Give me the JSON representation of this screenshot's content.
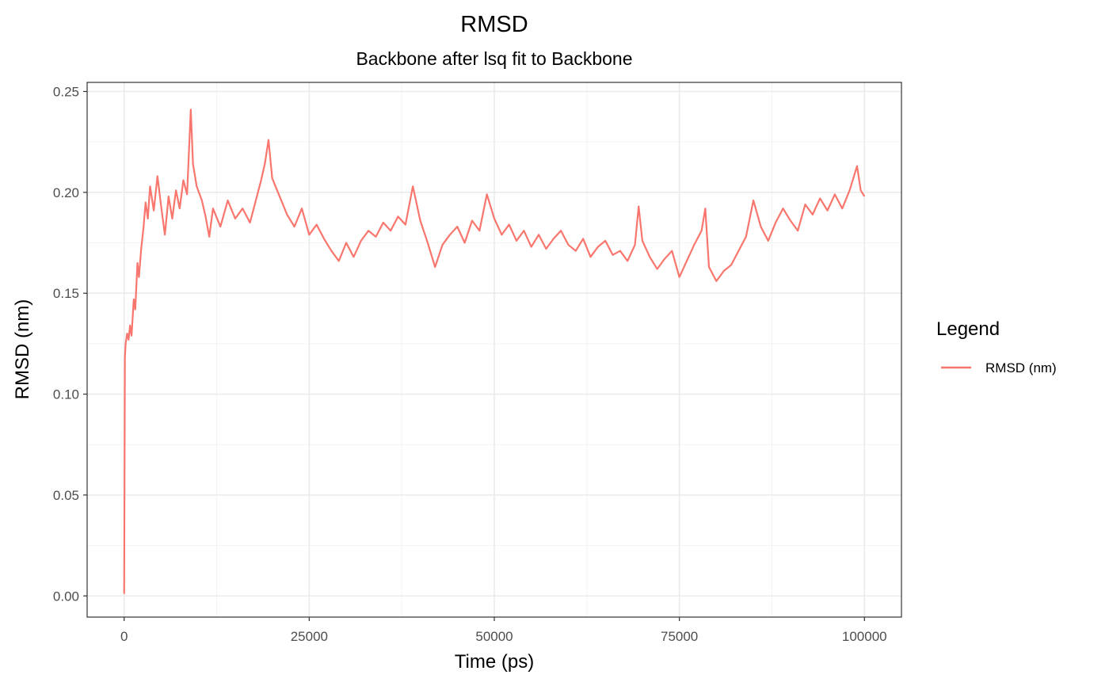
{
  "chart_data": {
    "type": "line",
    "title": "RMSD",
    "subtitle": "Backbone after lsq fit to Backbone",
    "xlabel": "Time (ps)",
    "ylabel": "RMSD (nm)",
    "xlim": [
      -5000,
      105000
    ],
    "ylim": [
      -0.0105,
      0.2545
    ],
    "x_ticks": [
      0,
      25000,
      50000,
      75000,
      100000
    ],
    "x_tick_labels": [
      "0",
      "25000",
      "50000",
      "75000",
      "100000"
    ],
    "y_ticks": [
      0.0,
      0.05,
      0.1,
      0.15,
      0.2,
      0.25
    ],
    "y_tick_labels": [
      "0.00",
      "0.05",
      "0.10",
      "0.15",
      "0.20",
      "0.25"
    ],
    "grid": true,
    "legend": {
      "title": "Legend",
      "position": "right"
    },
    "series": [
      {
        "name": "RMSD (nm)",
        "color": "#f8766d",
        "points": [
          [
            0,
            0.001
          ],
          [
            100,
            0.118
          ],
          [
            200,
            0.125
          ],
          [
            400,
            0.13
          ],
          [
            600,
            0.127
          ],
          [
            800,
            0.134
          ],
          [
            1000,
            0.129
          ],
          [
            1300,
            0.147
          ],
          [
            1500,
            0.142
          ],
          [
            1800,
            0.165
          ],
          [
            2000,
            0.158
          ],
          [
            2300,
            0.172
          ],
          [
            2600,
            0.182
          ],
          [
            2900,
            0.195
          ],
          [
            3200,
            0.187
          ],
          [
            3500,
            0.203
          ],
          [
            4000,
            0.191
          ],
          [
            4500,
            0.208
          ],
          [
            5000,
            0.193
          ],
          [
            5500,
            0.179
          ],
          [
            6000,
            0.198
          ],
          [
            6500,
            0.187
          ],
          [
            7000,
            0.201
          ],
          [
            7500,
            0.192
          ],
          [
            8000,
            0.206
          ],
          [
            8500,
            0.199
          ],
          [
            9000,
            0.241
          ],
          [
            9300,
            0.214
          ],
          [
            9800,
            0.203
          ],
          [
            10500,
            0.196
          ],
          [
            11000,
            0.188
          ],
          [
            11500,
            0.178
          ],
          [
            12000,
            0.192
          ],
          [
            13000,
            0.183
          ],
          [
            14000,
            0.196
          ],
          [
            15000,
            0.187
          ],
          [
            16000,
            0.192
          ],
          [
            17000,
            0.185
          ],
          [
            18000,
            0.199
          ],
          [
            18500,
            0.206
          ],
          [
            19000,
            0.214
          ],
          [
            19500,
            0.226
          ],
          [
            20000,
            0.207
          ],
          [
            21000,
            0.198
          ],
          [
            22000,
            0.189
          ],
          [
            23000,
            0.183
          ],
          [
            24000,
            0.192
          ],
          [
            25000,
            0.179
          ],
          [
            26000,
            0.184
          ],
          [
            27000,
            0.177
          ],
          [
            28000,
            0.171
          ],
          [
            29000,
            0.166
          ],
          [
            30000,
            0.175
          ],
          [
            31000,
            0.168
          ],
          [
            32000,
            0.176
          ],
          [
            33000,
            0.181
          ],
          [
            34000,
            0.178
          ],
          [
            35000,
            0.185
          ],
          [
            36000,
            0.181
          ],
          [
            37000,
            0.188
          ],
          [
            38000,
            0.184
          ],
          [
            39000,
            0.203
          ],
          [
            40000,
            0.186
          ],
          [
            41000,
            0.175
          ],
          [
            42000,
            0.163
          ],
          [
            43000,
            0.174
          ],
          [
            44000,
            0.179
          ],
          [
            45000,
            0.183
          ],
          [
            46000,
            0.175
          ],
          [
            47000,
            0.186
          ],
          [
            48000,
            0.181
          ],
          [
            49000,
            0.199
          ],
          [
            50000,
            0.187
          ],
          [
            51000,
            0.179
          ],
          [
            52000,
            0.184
          ],
          [
            53000,
            0.176
          ],
          [
            54000,
            0.181
          ],
          [
            55000,
            0.173
          ],
          [
            56000,
            0.179
          ],
          [
            57000,
            0.172
          ],
          [
            58000,
            0.177
          ],
          [
            59000,
            0.181
          ],
          [
            60000,
            0.174
          ],
          [
            61000,
            0.171
          ],
          [
            62000,
            0.177
          ],
          [
            63000,
            0.168
          ],
          [
            64000,
            0.173
          ],
          [
            65000,
            0.176
          ],
          [
            66000,
            0.169
          ],
          [
            67000,
            0.171
          ],
          [
            68000,
            0.166
          ],
          [
            69000,
            0.174
          ],
          [
            69500,
            0.193
          ],
          [
            70000,
            0.176
          ],
          [
            71000,
            0.168
          ],
          [
            72000,
            0.162
          ],
          [
            73000,
            0.167
          ],
          [
            74000,
            0.171
          ],
          [
            75000,
            0.158
          ],
          [
            76000,
            0.166
          ],
          [
            77000,
            0.174
          ],
          [
            78000,
            0.181
          ],
          [
            78500,
            0.192
          ],
          [
            79000,
            0.163
          ],
          [
            80000,
            0.156
          ],
          [
            81000,
            0.161
          ],
          [
            82000,
            0.164
          ],
          [
            83000,
            0.171
          ],
          [
            84000,
            0.178
          ],
          [
            85000,
            0.196
          ],
          [
            86000,
            0.183
          ],
          [
            87000,
            0.176
          ],
          [
            88000,
            0.185
          ],
          [
            89000,
            0.192
          ],
          [
            90000,
            0.186
          ],
          [
            91000,
            0.181
          ],
          [
            92000,
            0.194
          ],
          [
            93000,
            0.189
          ],
          [
            94000,
            0.197
          ],
          [
            95000,
            0.191
          ],
          [
            96000,
            0.199
          ],
          [
            97000,
            0.192
          ],
          [
            98000,
            0.201
          ],
          [
            99000,
            0.213
          ],
          [
            99500,
            0.201
          ],
          [
            100000,
            0.198
          ]
        ]
      }
    ]
  }
}
